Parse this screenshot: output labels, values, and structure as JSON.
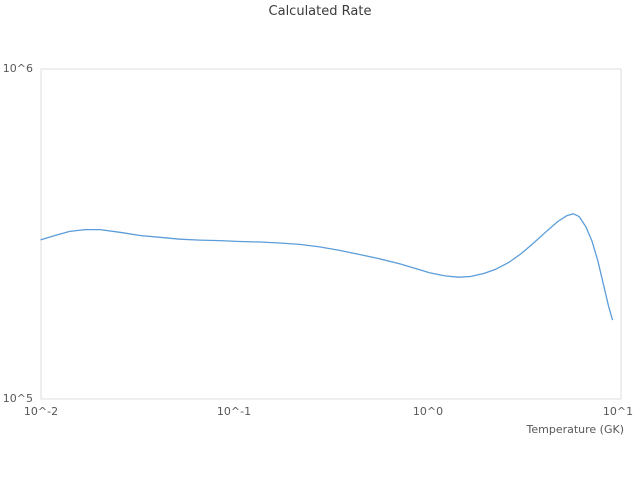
{
  "chart_data": {
    "type": "line",
    "title": "Calculated Rate",
    "xlabel": "Temperature (GK)",
    "ylabel": "",
    "x_scale": "log",
    "y_scale": "log",
    "xlim": [
      0.01,
      10
    ],
    "ylim": [
      100000,
      1000000
    ],
    "x_ticks": [
      "10^-2",
      "10^-1",
      "10^0",
      "10^1"
    ],
    "x_tick_values": [
      0.01,
      0.1,
      1,
      10
    ],
    "y_ticks": [
      "10^5",
      "10^6"
    ],
    "y_tick_values": [
      100000,
      1000000
    ],
    "grid": false,
    "legend": false,
    "frame_color": "#dcdcdc",
    "line_color": "#5b9dd9",
    "series": [
      {
        "name": "calculated-rate",
        "x": [
          0.01,
          0.0118,
          0.0141,
          0.0169,
          0.0202,
          0.0256,
          0.0325,
          0.0412,
          0.0523,
          0.0663,
          0.0841,
          0.1067,
          0.1353,
          0.1716,
          0.2177,
          0.2761,
          0.3502,
          0.4442,
          0.5634,
          0.7147,
          0.8572,
          1.028,
          1.232,
          1.443,
          1.666,
          1.948,
          2.24,
          2.618,
          3.029,
          3.509,
          4.065,
          4.709,
          5.23,
          5.668,
          6.076,
          6.595,
          7.078,
          7.592,
          8.144,
          8.628,
          9.029
        ],
        "y": [
          304000,
          313000,
          322000,
          326000,
          326000,
          320000,
          313000,
          309000,
          305000,
          303000,
          302000,
          300000,
          299000,
          297000,
          294000,
          289000,
          282000,
          274000,
          266000,
          257000,
          249000,
          241000,
          236000,
          234000,
          235000,
          240000,
          247000,
          259000,
          275000,
          296000,
          320000,
          345000,
          359000,
          364000,
          357000,
          332000,
          301000,
          262000,
          220000,
          191000,
          174000
        ]
      }
    ]
  }
}
